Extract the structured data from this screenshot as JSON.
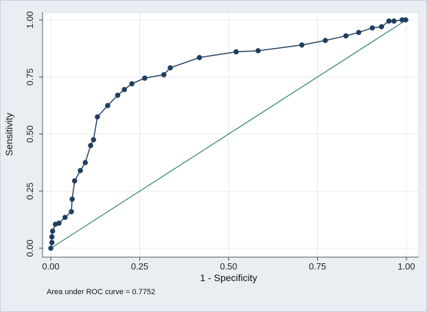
{
  "chart_data": {
    "type": "line",
    "title": "",
    "xlabel": "1 - Specificity",
    "ylabel": "Sensitivity",
    "xlim": [
      0,
      1
    ],
    "ylim": [
      0,
      1
    ],
    "xticks": [
      "0.00",
      "0.25",
      "0.50",
      "0.75",
      "1.00"
    ],
    "yticks": [
      "0.00",
      "0.25",
      "0.50",
      "0.75",
      "1.00"
    ],
    "grid": true,
    "annotation": "Area under ROC curve = 0.7752",
    "colors": {
      "curve": "#1f3f5f",
      "reference": "#2e7b6f",
      "background": "#e9eef2",
      "plot_background": "#ffffff",
      "grid": "#e4e9ee"
    },
    "series": [
      {
        "type": "line-markers",
        "points": [
          [
            0.0,
            0.0
          ],
          [
            0.003,
            0.025
          ],
          [
            0.003,
            0.05
          ],
          [
            0.005,
            0.075
          ],
          [
            0.013,
            0.105
          ],
          [
            0.023,
            0.11
          ],
          [
            0.04,
            0.135
          ],
          [
            0.058,
            0.16
          ],
          [
            0.06,
            0.215
          ],
          [
            0.067,
            0.295
          ],
          [
            0.083,
            0.34
          ],
          [
            0.097,
            0.375
          ],
          [
            0.112,
            0.45
          ],
          [
            0.12,
            0.475
          ],
          [
            0.131,
            0.575
          ],
          [
            0.16,
            0.625
          ],
          [
            0.188,
            0.67
          ],
          [
            0.207,
            0.695
          ],
          [
            0.228,
            0.72
          ],
          [
            0.264,
            0.745
          ],
          [
            0.318,
            0.76
          ],
          [
            0.336,
            0.79
          ],
          [
            0.418,
            0.835
          ],
          [
            0.521,
            0.86
          ],
          [
            0.583,
            0.865
          ],
          [
            0.706,
            0.89
          ],
          [
            0.772,
            0.91
          ],
          [
            0.83,
            0.93
          ],
          [
            0.866,
            0.945
          ],
          [
            0.904,
            0.965
          ],
          [
            0.93,
            0.97
          ],
          [
            0.951,
            0.995
          ],
          [
            0.965,
            0.995
          ],
          [
            0.988,
            1.0
          ],
          [
            0.998,
            1.0
          ]
        ]
      },
      {
        "type": "reference-line",
        "points": [
          [
            0,
            0
          ],
          [
            1,
            1
          ]
        ]
      }
    ]
  }
}
